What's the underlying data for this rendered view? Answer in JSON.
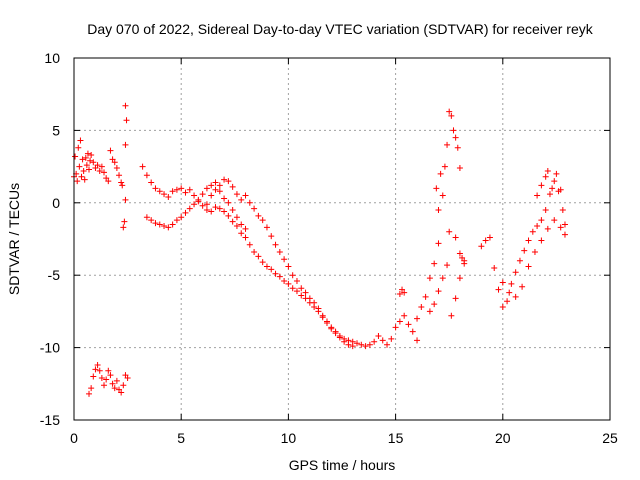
{
  "chart_data": {
    "type": "scatter",
    "title": "Day 070 of 2022, Sidereal Day-to-day VTEC variation (SDTVAR) for receiver reyk",
    "xlabel": "GPS time / hours",
    "ylabel": "SDTVAR / TECUs",
    "xlim": [
      0,
      25
    ],
    "ylim": [
      -15,
      10
    ],
    "xticks": [
      "0",
      "5",
      "10",
      "15",
      "20",
      "25"
    ],
    "yticks": [
      "-15",
      "-10",
      "-5",
      "0",
      "5",
      "10"
    ],
    "grid": true,
    "marker": "+",
    "color": "#ff0000",
    "series": [
      {
        "name": "SDTVAR",
        "points": [
          [
            0.0,
            1.8
          ],
          [
            0.05,
            3.2
          ],
          [
            0.1,
            2.0
          ],
          [
            0.15,
            1.5
          ],
          [
            0.2,
            3.8
          ],
          [
            0.25,
            2.5
          ],
          [
            0.3,
            4.3
          ],
          [
            0.35,
            1.8
          ],
          [
            0.4,
            3.0
          ],
          [
            0.45,
            2.2
          ],
          [
            0.5,
            1.6
          ],
          [
            0.55,
            3.1
          ],
          [
            0.6,
            2.6
          ],
          [
            0.65,
            3.4
          ],
          [
            0.7,
            2.3
          ],
          [
            0.75,
            2.9
          ],
          [
            0.8,
            3.3
          ],
          [
            0.9,
            2.8
          ],
          [
            1.0,
            2.4
          ],
          [
            1.1,
            2.6
          ],
          [
            1.2,
            2.2
          ],
          [
            1.3,
            2.5
          ],
          [
            1.4,
            2.1
          ],
          [
            1.5,
            1.7
          ],
          [
            1.6,
            1.5
          ],
          [
            1.7,
            3.6
          ],
          [
            1.8,
            3.0
          ],
          [
            1.9,
            2.8
          ],
          [
            2.0,
            2.4
          ],
          [
            2.1,
            1.9
          ],
          [
            2.2,
            1.4
          ],
          [
            2.25,
            1.2
          ],
          [
            0.7,
            -13.2
          ],
          [
            0.8,
            -12.8
          ],
          [
            0.9,
            -12.0
          ],
          [
            1.0,
            -11.5
          ],
          [
            1.1,
            -11.2
          ],
          [
            1.2,
            -11.6
          ],
          [
            1.3,
            -12.1
          ],
          [
            1.4,
            -12.6
          ],
          [
            1.5,
            -12.2
          ],
          [
            1.6,
            -11.6
          ],
          [
            1.7,
            -11.9
          ],
          [
            1.8,
            -12.5
          ],
          [
            1.9,
            -12.8
          ],
          [
            2.0,
            -12.3
          ],
          [
            2.1,
            -12.9
          ],
          [
            2.2,
            -13.1
          ],
          [
            2.3,
            -12.6
          ],
          [
            2.4,
            -11.9
          ],
          [
            2.5,
            -12.1
          ],
          [
            2.3,
            -1.7
          ],
          [
            2.35,
            -1.3
          ],
          [
            2.4,
            0.2
          ],
          [
            2.4,
            4.0
          ],
          [
            2.45,
            5.7
          ],
          [
            2.4,
            6.7
          ],
          [
            3.2,
            2.5
          ],
          [
            3.4,
            1.9
          ],
          [
            3.6,
            1.4
          ],
          [
            3.8,
            1.0
          ],
          [
            4.0,
            0.8
          ],
          [
            4.2,
            0.6
          ],
          [
            4.4,
            0.4
          ],
          [
            4.6,
            0.8
          ],
          [
            4.8,
            0.9
          ],
          [
            5.0,
            1.0
          ],
          [
            5.2,
            0.7
          ],
          [
            5.4,
            0.9
          ],
          [
            5.6,
            0.5
          ],
          [
            5.8,
            0.2
          ],
          [
            6.0,
            0.6
          ],
          [
            6.2,
            1.0
          ],
          [
            6.4,
            1.2
          ],
          [
            6.6,
            1.4
          ],
          [
            6.8,
            1.2
          ],
          [
            7.0,
            1.6
          ],
          [
            7.2,
            1.5
          ],
          [
            7.4,
            1.1
          ],
          [
            7.6,
            0.6
          ],
          [
            7.8,
            0.2
          ],
          [
            8.0,
            0.5
          ],
          [
            8.2,
            0.0
          ],
          [
            8.4,
            -0.4
          ],
          [
            8.6,
            -0.9
          ],
          [
            8.8,
            -1.2
          ],
          [
            9.0,
            -1.7
          ],
          [
            9.2,
            -2.3
          ],
          [
            9.4,
            -2.9
          ],
          [
            9.6,
            -3.4
          ],
          [
            9.8,
            -3.9
          ],
          [
            10.0,
            -4.4
          ],
          [
            10.2,
            -5.0
          ],
          [
            10.4,
            -5.4
          ],
          [
            10.6,
            -5.9
          ],
          [
            10.8,
            -6.2
          ],
          [
            11.0,
            -6.6
          ],
          [
            11.2,
            -6.9
          ],
          [
            11.4,
            -7.3
          ],
          [
            11.6,
            -7.8
          ],
          [
            11.8,
            -8.2
          ],
          [
            12.0,
            -8.6
          ],
          [
            12.2,
            -8.9
          ],
          [
            12.4,
            -9.2
          ],
          [
            12.6,
            -9.4
          ],
          [
            12.8,
            -9.5
          ],
          [
            13.0,
            -9.6
          ],
          [
            13.2,
            -9.7
          ],
          [
            13.4,
            -9.8
          ],
          [
            13.6,
            -9.9
          ],
          [
            13.8,
            -9.8
          ],
          [
            14.0,
            -9.6
          ],
          [
            3.4,
            -1.0
          ],
          [
            3.6,
            -1.2
          ],
          [
            3.8,
            -1.4
          ],
          [
            4.0,
            -1.5
          ],
          [
            4.2,
            -1.6
          ],
          [
            4.4,
            -1.7
          ],
          [
            4.6,
            -1.5
          ],
          [
            4.8,
            -1.2
          ],
          [
            5.0,
            -1.0
          ],
          [
            5.2,
            -0.7
          ],
          [
            5.4,
            -0.4
          ],
          [
            5.6,
            -0.1
          ],
          [
            5.8,
            0.1
          ],
          [
            6.0,
            -0.2
          ],
          [
            6.2,
            -0.5
          ],
          [
            6.4,
            -0.6
          ],
          [
            6.6,
            -0.3
          ],
          [
            6.8,
            -0.4
          ],
          [
            7.0,
            -0.6
          ],
          [
            7.2,
            -0.9
          ],
          [
            7.4,
            -1.3
          ],
          [
            7.6,
            -1.6
          ],
          [
            7.8,
            -2.1
          ],
          [
            8.0,
            -2.4
          ],
          [
            8.2,
            -2.9
          ],
          [
            8.4,
            -3.4
          ],
          [
            8.6,
            -3.7
          ],
          [
            8.8,
            -4.1
          ],
          [
            9.0,
            -4.4
          ],
          [
            9.2,
            -4.6
          ],
          [
            9.4,
            -4.9
          ],
          [
            9.6,
            -5.1
          ],
          [
            9.8,
            -5.4
          ],
          [
            10.0,
            -5.6
          ],
          [
            10.2,
            -5.9
          ],
          [
            10.4,
            -6.1
          ],
          [
            10.6,
            -6.4
          ],
          [
            10.8,
            -6.6
          ],
          [
            11.0,
            -6.9
          ],
          [
            11.2,
            -7.2
          ],
          [
            11.4,
            -7.5
          ],
          [
            11.6,
            -7.9
          ],
          [
            11.8,
            -8.3
          ],
          [
            12.0,
            -8.7
          ],
          [
            12.2,
            -9.0
          ],
          [
            12.4,
            -9.3
          ],
          [
            12.6,
            -9.6
          ],
          [
            12.8,
            -9.8
          ],
          [
            13.0,
            -9.9
          ],
          [
            6.2,
            -0.1
          ],
          [
            6.4,
            0.5
          ],
          [
            6.6,
            0.9
          ],
          [
            6.8,
            0.8
          ],
          [
            7.0,
            0.3
          ],
          [
            7.2,
            0.0
          ],
          [
            7.4,
            -0.5
          ],
          [
            7.6,
            -1.0
          ],
          [
            7.8,
            -1.5
          ],
          [
            8.0,
            -1.8
          ],
          [
            14.2,
            -9.2
          ],
          [
            14.4,
            -9.5
          ],
          [
            14.6,
            -9.8
          ],
          [
            14.8,
            -9.4
          ],
          [
            15.0,
            -8.6
          ],
          [
            15.2,
            -8.2
          ],
          [
            15.4,
            -7.8
          ],
          [
            15.6,
            -8.4
          ],
          [
            15.8,
            -8.9
          ],
          [
            16.0,
            -9.5
          ],
          [
            15.2,
            -6.3
          ],
          [
            15.3,
            -6.0
          ],
          [
            15.4,
            -6.2
          ],
          [
            16.0,
            -8.0
          ],
          [
            16.2,
            -7.2
          ],
          [
            16.4,
            -6.5
          ],
          [
            16.6,
            -5.2
          ],
          [
            16.8,
            -4.2
          ],
          [
            17.0,
            -2.8
          ],
          [
            17.0,
            -0.5
          ],
          [
            16.9,
            1.0
          ],
          [
            17.1,
            2.0
          ],
          [
            17.2,
            0.5
          ],
          [
            16.6,
            -7.5
          ],
          [
            16.8,
            -7.0
          ],
          [
            17.0,
            -6.1
          ],
          [
            17.2,
            -5.2
          ],
          [
            17.4,
            -4.3
          ],
          [
            17.3,
            2.5
          ],
          [
            17.4,
            4.0
          ],
          [
            17.5,
            6.3
          ],
          [
            17.6,
            6.0
          ],
          [
            17.7,
            5.0
          ],
          [
            17.8,
            4.5
          ],
          [
            17.9,
            3.8
          ],
          [
            18.0,
            2.4
          ],
          [
            17.5,
            -2.0
          ],
          [
            17.8,
            -2.4
          ],
          [
            18.0,
            -3.5
          ],
          [
            18.1,
            -3.8
          ],
          [
            18.2,
            -4.2
          ],
          [
            17.6,
            -7.8
          ],
          [
            17.8,
            -6.6
          ],
          [
            18.0,
            -5.2
          ],
          [
            18.2,
            -4.0
          ],
          [
            19.0,
            -3.0
          ],
          [
            19.2,
            -2.6
          ],
          [
            19.4,
            -2.4
          ],
          [
            19.6,
            -4.5
          ],
          [
            19.8,
            -6.0
          ],
          [
            20.0,
            -7.2
          ],
          [
            20.2,
            -6.8
          ],
          [
            20.4,
            -5.6
          ],
          [
            20.6,
            -4.8
          ],
          [
            20.8,
            -4.0
          ],
          [
            21.0,
            -3.3
          ],
          [
            21.2,
            -2.6
          ],
          [
            21.4,
            -2.0
          ],
          [
            21.6,
            -1.6
          ],
          [
            21.8,
            -1.2
          ],
          [
            22.0,
            -0.5
          ],
          [
            22.2,
            0.6
          ],
          [
            22.4,
            1.5
          ],
          [
            22.6,
            0.8
          ],
          [
            22.8,
            -0.5
          ],
          [
            20.0,
            -5.5
          ],
          [
            20.3,
            -6.2
          ],
          [
            20.6,
            -6.5
          ],
          [
            20.9,
            -5.8
          ],
          [
            21.2,
            -4.4
          ],
          [
            21.5,
            -3.4
          ],
          [
            21.8,
            -2.6
          ],
          [
            22.1,
            -1.8
          ],
          [
            22.4,
            -1.2
          ],
          [
            22.7,
            -1.7
          ],
          [
            22.9,
            -2.2
          ],
          [
            21.6,
            0.5
          ],
          [
            21.8,
            1.2
          ],
          [
            22.0,
            1.8
          ],
          [
            22.1,
            2.2
          ],
          [
            22.3,
            1.0
          ],
          [
            22.5,
            2.0
          ],
          [
            22.7,
            0.9
          ],
          [
            22.9,
            -1.5
          ]
        ]
      }
    ]
  }
}
